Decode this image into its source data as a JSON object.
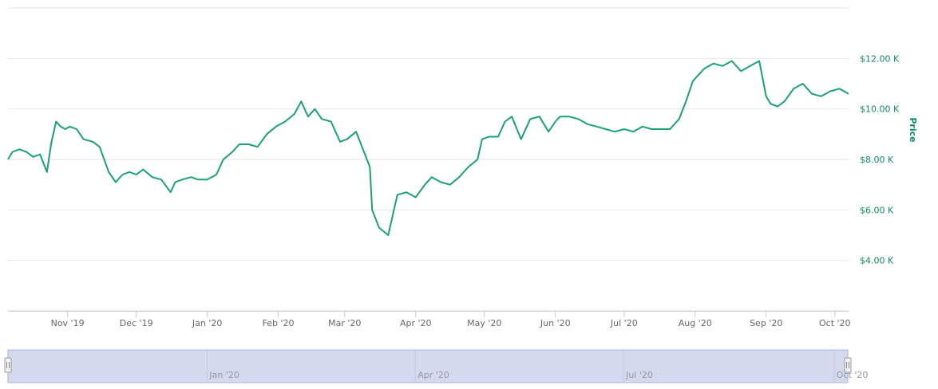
{
  "colors": {
    "series": "#1aa179",
    "grid": "#e6e6e6",
    "axis_label": "#0e8a63",
    "navigator_fill": "#d3d9ee",
    "navigator_border": "#aab5dc"
  },
  "chart_data": {
    "type": "line",
    "title": "",
    "ylabel": "Price",
    "xlabel": "",
    "ylim": [
      2000,
      14000
    ],
    "y_ticks": [
      4000,
      6000,
      8000,
      10000,
      12000
    ],
    "y_tick_labels": [
      "$4.00 K",
      "$6.00 K",
      "$8.00 K",
      "$10.00 K",
      "$12.00 K"
    ],
    "x_tick_labels": [
      "Nov '19",
      "Dec '19",
      "Jan '20",
      "Feb '20",
      "Mar '20",
      "Apr '20",
      "May '20",
      "Jun '20",
      "Jul '20",
      "Aug '20",
      "Sep '20",
      "Oct '20"
    ],
    "x_tick_dates": [
      "2019-11-01",
      "2019-12-01",
      "2020-01-01",
      "2020-02-01",
      "2020-03-01",
      "2020-04-01",
      "2020-05-01",
      "2020-06-01",
      "2020-07-01",
      "2020-08-01",
      "2020-09-01",
      "2020-10-01"
    ],
    "x_range": [
      "2019-10-06",
      "2020-10-07"
    ],
    "grid": true,
    "legend": "none",
    "series": [
      {
        "x": [
          "2019-10-06",
          "2019-10-08",
          "2019-10-11",
          "2019-10-14",
          "2019-10-17",
          "2019-10-20",
          "2019-10-23",
          "2019-10-25",
          "2019-10-27",
          "2019-10-29",
          "2019-10-31",
          "2019-11-02",
          "2019-11-05",
          "2019-11-08",
          "2019-11-12",
          "2019-11-15",
          "2019-11-19",
          "2019-11-22",
          "2019-11-25",
          "2019-11-28",
          "2019-12-01",
          "2019-12-04",
          "2019-12-08",
          "2019-12-12",
          "2019-12-16",
          "2019-12-18",
          "2019-12-21",
          "2019-12-25",
          "2019-12-28",
          "2020-01-01",
          "2020-01-05",
          "2020-01-08",
          "2020-01-12",
          "2020-01-15",
          "2020-01-19",
          "2020-01-23",
          "2020-01-27",
          "2020-01-31",
          "2020-02-04",
          "2020-02-08",
          "2020-02-11",
          "2020-02-14",
          "2020-02-17",
          "2020-02-20",
          "2020-02-24",
          "2020-02-28",
          "2020-03-02",
          "2020-03-06",
          "2020-03-09",
          "2020-03-12",
          "2020-03-13",
          "2020-03-16",
          "2020-03-20",
          "2020-03-24",
          "2020-03-28",
          "2020-04-01",
          "2020-04-05",
          "2020-04-08",
          "2020-04-12",
          "2020-04-16",
          "2020-04-20",
          "2020-04-24",
          "2020-04-28",
          "2020-04-30",
          "2020-05-03",
          "2020-05-07",
          "2020-05-10",
          "2020-05-13",
          "2020-05-17",
          "2020-05-21",
          "2020-05-25",
          "2020-05-29",
          "2020-06-01",
          "2020-06-03",
          "2020-06-07",
          "2020-06-11",
          "2020-06-15",
          "2020-06-19",
          "2020-06-23",
          "2020-06-27",
          "2020-07-01",
          "2020-07-05",
          "2020-07-09",
          "2020-07-13",
          "2020-07-17",
          "2020-07-21",
          "2020-07-25",
          "2020-07-28",
          "2020-07-31",
          "2020-08-02",
          "2020-08-05",
          "2020-08-09",
          "2020-08-13",
          "2020-08-17",
          "2020-08-21",
          "2020-08-25",
          "2020-08-29",
          "2020-09-01",
          "2020-09-03",
          "2020-09-06",
          "2020-09-09",
          "2020-09-13",
          "2020-09-17",
          "2020-09-21",
          "2020-09-25",
          "2020-09-29",
          "2020-10-03",
          "2020-10-07"
        ],
        "values": [
          8000,
          8300,
          8400,
          8300,
          8100,
          8200,
          7500,
          8700,
          9500,
          9300,
          9200,
          9300,
          9200,
          8800,
          8700,
          8500,
          7500,
          7100,
          7400,
          7500,
          7400,
          7600,
          7300,
          7200,
          6700,
          7100,
          7200,
          7300,
          7200,
          7200,
          7400,
          8000,
          8300,
          8600,
          8600,
          8500,
          9000,
          9300,
          9500,
          9800,
          10300,
          9700,
          10000,
          9600,
          9500,
          8700,
          8800,
          9100,
          8400,
          7700,
          6000,
          5300,
          5000,
          6600,
          6700,
          6500,
          7000,
          7300,
          7100,
          7000,
          7300,
          7700,
          8000,
          8800,
          8900,
          8900,
          9500,
          9700,
          8800,
          9600,
          9700,
          9100,
          9500,
          9700,
          9700,
          9600,
          9400,
          9300,
          9200,
          9100,
          9200,
          9100,
          9300,
          9200,
          9200,
          9200,
          9600,
          10300,
          11100,
          11300,
          11600,
          11800,
          11700,
          11900,
          11500,
          11700,
          11900,
          10500,
          10200,
          10100,
          10300,
          10800,
          11000,
          10600,
          10500,
          10700,
          10800,
          10600
        ]
      }
    ]
  },
  "navigator": {
    "labels": [
      "Jan '20",
      "Apr '20",
      "Jul '20",
      "Oct '20"
    ],
    "label_dates": [
      "2020-01-01",
      "2020-04-01",
      "2020-07-01",
      "2020-10-01"
    ],
    "left_handle_icon": "drag-handle-icon",
    "right_handle_icon": "drag-handle-icon"
  }
}
